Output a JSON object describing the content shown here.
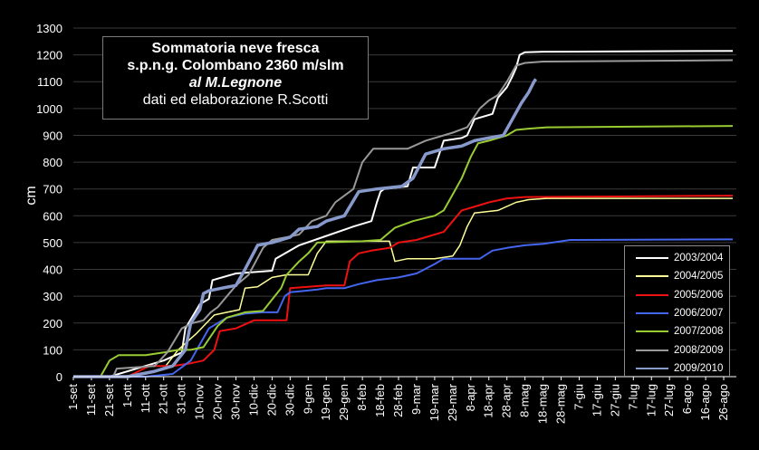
{
  "chart_data": {
    "type": "line",
    "title_lines": [
      "Sommatoria neve fresca",
      "s.p.n.g. Colombano 2360 m/slm",
      "al M.Legnone",
      "dati ed elaborazione R.Scotti"
    ],
    "ylabel": "cm",
    "xlabel": "",
    "ylim": [
      0,
      1300
    ],
    "yticks": [
      0,
      100,
      200,
      300,
      400,
      500,
      600,
      700,
      800,
      900,
      1000,
      1100,
      1200,
      1300
    ],
    "x_tick_labels": [
      "1-set",
      "11-set",
      "21-set",
      "1-ott",
      "11-ott",
      "21-ott",
      "31-ott",
      "10-nov",
      "20-nov",
      "30-nov",
      "10-dic",
      "20-dic",
      "30-dic",
      "9-gen",
      "19-gen",
      "29-gen",
      "8-feb",
      "18-feb",
      "28-feb",
      "9-mar",
      "19-mar",
      "29-mar",
      "8-apr",
      "18-apr",
      "28-apr",
      "8-mag",
      "18-mag",
      "28-mag",
      "7-giu",
      "17-giu",
      "27-giu",
      "7-lug",
      "17-lug",
      "27-lug",
      "6-ago",
      "16-ago",
      "26-ago"
    ],
    "legend_position": "bottom-right",
    "series": [
      {
        "name": "2003/2004",
        "color": "#ffffff",
        "width": 2,
        "points": [
          [
            0,
            0
          ],
          [
            20,
            0
          ],
          [
            50,
            60
          ],
          [
            60,
            90
          ],
          [
            62,
            180
          ],
          [
            70,
            270
          ],
          [
            75,
            290
          ],
          [
            77,
            360
          ],
          [
            90,
            385
          ],
          [
            100,
            390
          ],
          [
            110,
            395
          ],
          [
            112,
            440
          ],
          [
            125,
            490
          ],
          [
            138,
            520
          ],
          [
            155,
            560
          ],
          [
            165,
            580
          ],
          [
            168,
            650
          ],
          [
            170,
            690
          ],
          [
            172,
            700
          ],
          [
            185,
            710
          ],
          [
            188,
            780
          ],
          [
            200,
            780
          ],
          [
            205,
            880
          ],
          [
            215,
            890
          ],
          [
            218,
            900
          ],
          [
            222,
            960
          ],
          [
            232,
            980
          ],
          [
            235,
            1040
          ],
          [
            240,
            1080
          ],
          [
            243,
            1120
          ],
          [
            245,
            1150
          ],
          [
            247,
            1200
          ],
          [
            250,
            1210
          ],
          [
            260,
            1212
          ],
          [
            365,
            1215
          ]
        ]
      },
      {
        "name": "2004/2005",
        "color": "#ffff99",
        "width": 1.5,
        "points": [
          [
            0,
            0
          ],
          [
            25,
            0
          ],
          [
            40,
            10
          ],
          [
            50,
            30
          ],
          [
            58,
            100
          ],
          [
            68,
            160
          ],
          [
            78,
            230
          ],
          [
            85,
            240
          ],
          [
            92,
            250
          ],
          [
            95,
            330
          ],
          [
            102,
            335
          ],
          [
            110,
            370
          ],
          [
            118,
            380
          ],
          [
            130,
            380
          ],
          [
            135,
            460
          ],
          [
            140,
            505
          ],
          [
            160,
            505
          ],
          [
            175,
            505
          ],
          [
            178,
            430
          ],
          [
            185,
            440
          ],
          [
            200,
            440
          ],
          [
            210,
            450
          ],
          [
            214,
            490
          ],
          [
            218,
            560
          ],
          [
            222,
            610
          ],
          [
            235,
            620
          ],
          [
            245,
            650
          ],
          [
            252,
            660
          ],
          [
            262,
            665
          ],
          [
            365,
            665
          ]
        ]
      },
      {
        "name": "2005/2006",
        "color": "#ee1111",
        "width": 2,
        "points": [
          [
            0,
            0
          ],
          [
            30,
            0
          ],
          [
            42,
            40
          ],
          [
            55,
            40
          ],
          [
            65,
            50
          ],
          [
            72,
            60
          ],
          [
            78,
            100
          ],
          [
            81,
            170
          ],
          [
            90,
            180
          ],
          [
            100,
            210
          ],
          [
            118,
            210
          ],
          [
            120,
            330
          ],
          [
            140,
            340
          ],
          [
            150,
            340
          ],
          [
            153,
            430
          ],
          [
            158,
            460
          ],
          [
            165,
            470
          ],
          [
            175,
            480
          ],
          [
            180,
            500
          ],
          [
            190,
            510
          ],
          [
            195,
            520
          ],
          [
            205,
            540
          ],
          [
            210,
            580
          ],
          [
            215,
            620
          ],
          [
            225,
            640
          ],
          [
            230,
            650
          ],
          [
            240,
            665
          ],
          [
            250,
            670
          ],
          [
            300,
            672
          ],
          [
            365,
            675
          ]
        ]
      },
      {
        "name": "2006/2007",
        "color": "#4466ee",
        "width": 2,
        "points": [
          [
            0,
            0
          ],
          [
            40,
            0
          ],
          [
            55,
            10
          ],
          [
            65,
            60
          ],
          [
            75,
            180
          ],
          [
            85,
            220
          ],
          [
            95,
            235
          ],
          [
            105,
            240
          ],
          [
            113,
            240
          ],
          [
            117,
            300
          ],
          [
            120,
            315
          ],
          [
            128,
            320
          ],
          [
            135,
            325
          ],
          [
            140,
            330
          ],
          [
            150,
            330
          ],
          [
            158,
            345
          ],
          [
            168,
            360
          ],
          [
            180,
            370
          ],
          [
            190,
            385
          ],
          [
            200,
            420
          ],
          [
            205,
            440
          ],
          [
            225,
            440
          ],
          [
            232,
            470
          ],
          [
            240,
            480
          ],
          [
            250,
            490
          ],
          [
            260,
            495
          ],
          [
            275,
            510
          ],
          [
            365,
            512
          ]
        ]
      },
      {
        "name": "2007/2008",
        "color": "#99cc33",
        "width": 2,
        "points": [
          [
            0,
            0
          ],
          [
            15,
            0
          ],
          [
            20,
            60
          ],
          [
            25,
            80
          ],
          [
            40,
            80
          ],
          [
            50,
            90
          ],
          [
            58,
            100
          ],
          [
            65,
            100
          ],
          [
            72,
            110
          ],
          [
            80,
            190
          ],
          [
            85,
            220
          ],
          [
            95,
            240
          ],
          [
            105,
            245
          ],
          [
            115,
            330
          ],
          [
            118,
            380
          ],
          [
            125,
            430
          ],
          [
            130,
            460
          ],
          [
            135,
            500
          ],
          [
            160,
            505
          ],
          [
            170,
            510
          ],
          [
            178,
            555
          ],
          [
            188,
            580
          ],
          [
            200,
            600
          ],
          [
            205,
            620
          ],
          [
            210,
            680
          ],
          [
            215,
            740
          ],
          [
            220,
            820
          ],
          [
            224,
            870
          ],
          [
            230,
            880
          ],
          [
            240,
            900
          ],
          [
            245,
            920
          ],
          [
            252,
            925
          ],
          [
            262,
            930
          ],
          [
            365,
            935
          ]
        ]
      },
      {
        "name": "2008/2009",
        "color": "#999999",
        "width": 2,
        "points": [
          [
            0,
            0
          ],
          [
            22,
            0
          ],
          [
            24,
            30
          ],
          [
            35,
            35
          ],
          [
            45,
            40
          ],
          [
            52,
            90
          ],
          [
            60,
            180
          ],
          [
            66,
            200
          ],
          [
            72,
            210
          ],
          [
            76,
            240
          ],
          [
            80,
            260
          ],
          [
            90,
            340
          ],
          [
            97,
            380
          ],
          [
            105,
            480
          ],
          [
            110,
            510
          ],
          [
            118,
            520
          ],
          [
            125,
            530
          ],
          [
            132,
            580
          ],
          [
            140,
            600
          ],
          [
            145,
            650
          ],
          [
            155,
            700
          ],
          [
            160,
            800
          ],
          [
            166,
            850
          ],
          [
            185,
            850
          ],
          [
            195,
            880
          ],
          [
            210,
            910
          ],
          [
            218,
            930
          ],
          [
            225,
            1000
          ],
          [
            230,
            1030
          ],
          [
            235,
            1050
          ],
          [
            240,
            1100
          ],
          [
            245,
            1160
          ],
          [
            250,
            1170
          ],
          [
            260,
            1175
          ],
          [
            365,
            1180
          ]
        ]
      },
      {
        "name": "2009/2010",
        "color": "#8899cc",
        "width": 3.5,
        "points": [
          [
            0,
            0
          ],
          [
            30,
            0
          ],
          [
            45,
            20
          ],
          [
            55,
            40
          ],
          [
            62,
            100
          ],
          [
            65,
            200
          ],
          [
            70,
            250
          ],
          [
            72,
            310
          ],
          [
            75,
            320
          ],
          [
            82,
            330
          ],
          [
            90,
            340
          ],
          [
            95,
            400
          ],
          [
            102,
            490
          ],
          [
            110,
            500
          ],
          [
            120,
            520
          ],
          [
            125,
            550
          ],
          [
            135,
            560
          ],
          [
            140,
            580
          ],
          [
            150,
            600
          ],
          [
            158,
            690
          ],
          [
            168,
            700
          ],
          [
            182,
            710
          ],
          [
            188,
            740
          ],
          [
            195,
            830
          ],
          [
            205,
            850
          ],
          [
            215,
            860
          ],
          [
            222,
            880
          ],
          [
            230,
            890
          ],
          [
            238,
            900
          ],
          [
            243,
            960
          ],
          [
            248,
            1020
          ],
          [
            252,
            1060
          ],
          [
            255,
            1100
          ],
          [
            256,
            1110
          ]
        ]
      }
    ]
  }
}
